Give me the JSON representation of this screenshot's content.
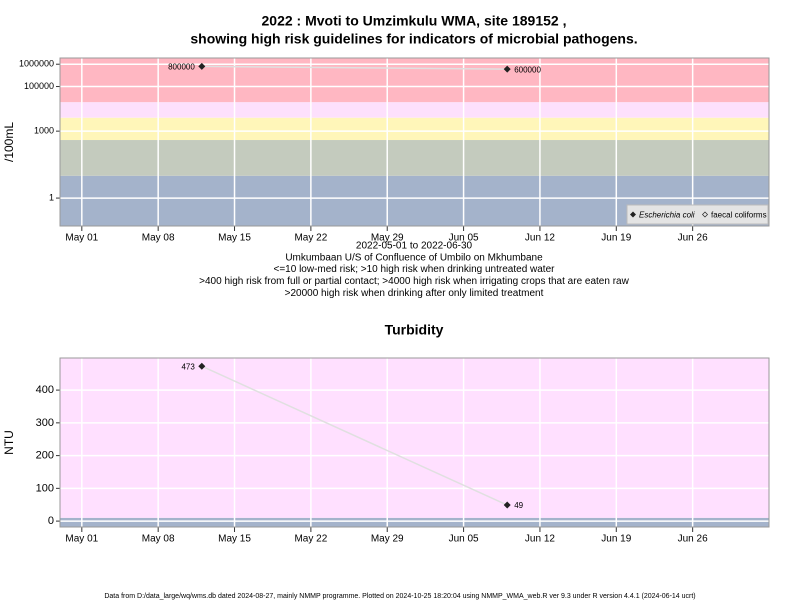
{
  "chart_data": [
    {
      "type": "line",
      "log_y": true,
      "title": [
        "2022 : Mvoti to Umzimkulu WMA, site 189152 ,",
        "showing high risk guidelines for indicators of microbial pathogens."
      ],
      "ylabel": "/100mL",
      "annotations": [
        "2022-05-01 to 2022-06-30",
        "Umkumbaan U/S of Confluence of Umbilo on Mkhumbane",
        "<=10 low-med risk; >10 high risk when drinking untreated water",
        ">400 high risk from full or partial contact; >4000 high risk when irrigating crops that are eaten raw",
        ">20000 high risk when drinking after only limited treatment"
      ],
      "x": [
        "2022-05-12",
        "2022-06-09"
      ],
      "series": [
        {
          "name": "Escherichia coli",
          "color": "#222222",
          "values": [
            800000,
            600000
          ]
        },
        {
          "name": "faecal coliforms",
          "color": "#222222",
          "values": [
            null,
            null
          ]
        }
      ],
      "xlim": [
        "2022-04-29",
        "2022-07-03"
      ],
      "xticks": [
        {
          "value": "2022-05-01",
          "label": "May 01"
        },
        {
          "value": "2022-05-08",
          "label": "May 08"
        },
        {
          "value": "2022-05-15",
          "label": "May 15"
        },
        {
          "value": "2022-05-22",
          "label": "May 22"
        },
        {
          "value": "2022-05-29",
          "label": "May 29"
        },
        {
          "value": "2022-06-05",
          "label": "Jun 05"
        },
        {
          "value": "2022-06-12",
          "label": "Jun 12"
        },
        {
          "value": "2022-06-19",
          "label": "Jun 19"
        },
        {
          "value": "2022-06-26",
          "label": "Jun 26"
        }
      ],
      "ylim": [
        0.056,
        1900000
      ],
      "yticks": [
        1,
        1000,
        100000,
        1000000
      ],
      "thresholds": [
        10,
        400,
        4000,
        20000
      ],
      "band_colors": [
        "#a4b3cb",
        "#c4cbbe",
        "#fff6b9",
        "#fde0fc",
        "#ffb7c2"
      ],
      "grid": true,
      "legend": "bottomright"
    },
    {
      "type": "line",
      "log_y": false,
      "title": [
        "Turbidity"
      ],
      "ylabel": "NTU",
      "x": [
        "2022-05-12",
        "2022-06-09"
      ],
      "series": [
        {
          "name": "Turbidity",
          "color": "#222222",
          "values": [
            473,
            49
          ]
        }
      ],
      "xlim": [
        "2022-04-29",
        "2022-07-03"
      ],
      "xticks": [
        {
          "value": "2022-05-01",
          "label": "May 01"
        },
        {
          "value": "2022-05-08",
          "label": "May 08"
        },
        {
          "value": "2022-05-15",
          "label": "May 15"
        },
        {
          "value": "2022-05-22",
          "label": "May 22"
        },
        {
          "value": "2022-05-29",
          "label": "May 29"
        },
        {
          "value": "2022-06-05",
          "label": "Jun 05"
        },
        {
          "value": "2022-06-12",
          "label": "Jun 12"
        },
        {
          "value": "2022-06-19",
          "label": "Jun 19"
        },
        {
          "value": "2022-06-26",
          "label": "Jun 26"
        }
      ],
      "ylim": [
        -18,
        498
      ],
      "yticks": [
        0,
        100,
        200,
        300,
        400
      ],
      "thresholds": [
        10
      ],
      "band_colors": [
        "#a4b3cb",
        "#ffe0ff"
      ],
      "grid": true
    }
  ],
  "footer": "Data from D:/data_large/wq/wms.db dated 2024-08-27, mainly NMMP programme. Plotted on 2024-10-25 18:20:04 using NMMP_WMA_web.R ver 9.3 under R version 4.4.1 (2024-06-14 ucrt)"
}
